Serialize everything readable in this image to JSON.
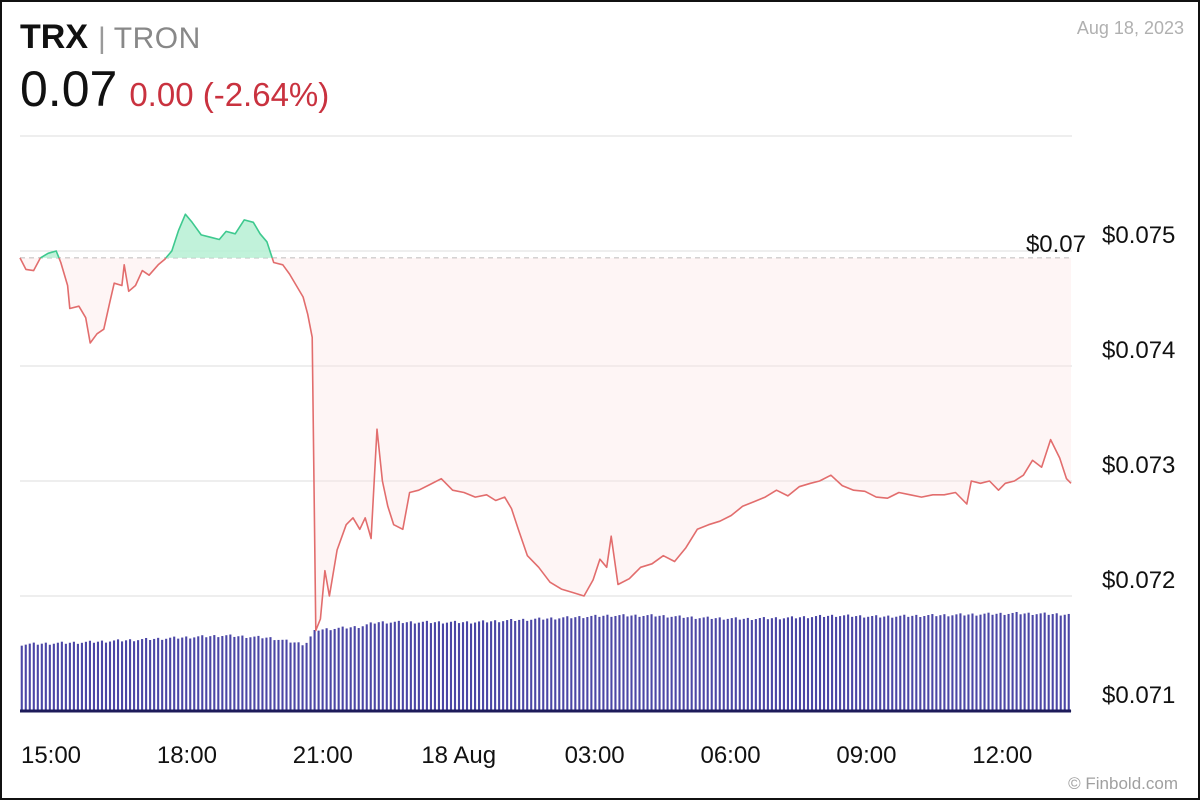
{
  "header": {
    "symbol": "TRX",
    "separator": "|",
    "name": "TRON",
    "price": "0.07",
    "change": "0.00 (-2.64%)",
    "date": "Aug 18, 2023"
  },
  "credit": "© Finbold.com",
  "colors": {
    "up_line": "#3ec98f",
    "up_fill": "#b6f0d3",
    "down_line": "#e26d6d",
    "down_fill": "#fde2e2",
    "volume_bar": "#4b46a6",
    "grid": "#dddddd",
    "reference": "#cccccc"
  },
  "chart_data": {
    "type": "line",
    "title": "",
    "xlabel": "",
    "ylabel": "",
    "ylim": [
      0.071,
      0.076
    ],
    "y_ticks": [
      {
        "value": 0.075,
        "label": "$0.075"
      },
      {
        "value": 0.074,
        "label": "$0.074"
      },
      {
        "value": 0.073,
        "label": "$0.073"
      },
      {
        "value": 0.072,
        "label": "$0.072"
      },
      {
        "value": 0.071,
        "label": "$0.071"
      }
    ],
    "reference_line": {
      "value": 0.07494,
      "label": "$0.07"
    },
    "x_unit": "hours since 15:00 Aug 17, 2023",
    "xlim": [
      0,
      23.2
    ],
    "x_ticks": [
      {
        "value": 0,
        "label": "15:00"
      },
      {
        "value": 3,
        "label": "18:00"
      },
      {
        "value": 6,
        "label": "21:00"
      },
      {
        "value": 9,
        "label": "18 Aug"
      },
      {
        "value": 12,
        "label": "03:00"
      },
      {
        "value": 15,
        "label": "06:00"
      },
      {
        "value": 18,
        "label": "09:00"
      },
      {
        "value": 21,
        "label": "12:00"
      }
    ],
    "grid": "horizontal",
    "series": [
      {
        "values": [
          [
            0.0,
            0.07494
          ],
          [
            0.13,
            0.07484
          ],
          [
            0.3,
            0.07483
          ],
          [
            0.45,
            0.07494
          ],
          [
            0.62,
            0.07498
          ],
          [
            0.8,
            0.075
          ],
          [
            0.9,
            0.0749
          ],
          [
            1.05,
            0.0747
          ],
          [
            1.1,
            0.0745
          ],
          [
            1.3,
            0.07452
          ],
          [
            1.45,
            0.07442
          ],
          [
            1.55,
            0.0742
          ],
          [
            1.7,
            0.07428
          ],
          [
            1.85,
            0.07432
          ],
          [
            1.98,
            0.07455
          ],
          [
            2.08,
            0.07472
          ],
          [
            2.25,
            0.0747
          ],
          [
            2.3,
            0.07488
          ],
          [
            2.4,
            0.07465
          ],
          [
            2.55,
            0.0747
          ],
          [
            2.7,
            0.07483
          ],
          [
            2.85,
            0.07479
          ],
          [
            3.05,
            0.07488
          ],
          [
            3.2,
            0.07493
          ],
          [
            3.35,
            0.075
          ],
          [
            3.5,
            0.07518
          ],
          [
            3.65,
            0.07532
          ],
          [
            3.8,
            0.07525
          ],
          [
            4.0,
            0.07514
          ],
          [
            4.2,
            0.07512
          ],
          [
            4.4,
            0.0751
          ],
          [
            4.55,
            0.07517
          ],
          [
            4.75,
            0.07515
          ],
          [
            4.95,
            0.07527
          ],
          [
            5.15,
            0.07525
          ],
          [
            5.3,
            0.07515
          ],
          [
            5.45,
            0.07508
          ],
          [
            5.6,
            0.0749
          ],
          [
            5.8,
            0.07488
          ],
          [
            5.95,
            0.0748
          ],
          [
            6.1,
            0.0747
          ],
          [
            6.25,
            0.0746
          ],
          [
            6.35,
            0.07445
          ],
          [
            6.45,
            0.07425
          ],
          [
            6.53,
            0.0717
          ],
          [
            6.63,
            0.0718
          ],
          [
            6.73,
            0.07222
          ],
          [
            6.83,
            0.072
          ],
          [
            7.0,
            0.0724
          ],
          [
            7.2,
            0.07262
          ],
          [
            7.35,
            0.07268
          ],
          [
            7.5,
            0.07258
          ],
          [
            7.62,
            0.07268
          ],
          [
            7.75,
            0.0725
          ],
          [
            7.88,
            0.07345
          ],
          [
            8.0,
            0.073
          ],
          [
            8.12,
            0.07278
          ],
          [
            8.25,
            0.07262
          ],
          [
            8.45,
            0.07258
          ],
          [
            8.6,
            0.0729
          ],
          [
            8.8,
            0.07292
          ],
          [
            9.05,
            0.07297
          ],
          [
            9.3,
            0.07302
          ],
          [
            9.55,
            0.07292
          ],
          [
            9.8,
            0.0729
          ],
          [
            10.05,
            0.07286
          ],
          [
            10.3,
            0.07288
          ],
          [
            10.5,
            0.07283
          ],
          [
            10.7,
            0.07286
          ],
          [
            10.85,
            0.07276
          ],
          [
            11.0,
            0.07258
          ],
          [
            11.2,
            0.07235
          ],
          [
            11.45,
            0.07225
          ],
          [
            11.7,
            0.07212
          ],
          [
            11.95,
            0.07206
          ],
          [
            12.2,
            0.07203
          ],
          [
            12.45,
            0.072
          ],
          [
            12.65,
            0.07214
          ],
          [
            12.8,
            0.07232
          ],
          [
            12.95,
            0.07225
          ],
          [
            13.05,
            0.07252
          ],
          [
            13.2,
            0.0721
          ],
          [
            13.45,
            0.07215
          ],
          [
            13.7,
            0.07225
          ],
          [
            13.95,
            0.07228
          ],
          [
            14.2,
            0.07235
          ],
          [
            14.45,
            0.0723
          ],
          [
            14.7,
            0.07242
          ],
          [
            14.95,
            0.07258
          ],
          [
            15.2,
            0.07262
          ],
          [
            15.45,
            0.07265
          ],
          [
            15.7,
            0.0727
          ],
          [
            15.95,
            0.07278
          ],
          [
            16.2,
            0.07282
          ],
          [
            16.45,
            0.07286
          ],
          [
            16.7,
            0.07292
          ],
          [
            16.95,
            0.07287
          ],
          [
            17.2,
            0.07295
          ],
          [
            17.45,
            0.07298
          ],
          [
            17.65,
            0.073
          ],
          [
            17.9,
            0.07305
          ],
          [
            18.15,
            0.07296
          ],
          [
            18.4,
            0.07292
          ],
          [
            18.65,
            0.07291
          ],
          [
            18.9,
            0.07286
          ],
          [
            19.15,
            0.07285
          ],
          [
            19.4,
            0.0729
          ],
          [
            19.65,
            0.07288
          ],
          [
            19.9,
            0.07286
          ],
          [
            20.15,
            0.07288
          ],
          [
            20.4,
            0.07288
          ],
          [
            20.65,
            0.0729
          ],
          [
            20.9,
            0.0728
          ],
          [
            21.0,
            0.073
          ],
          [
            21.2,
            0.07298
          ],
          [
            21.4,
            0.073
          ],
          [
            21.6,
            0.07292
          ],
          [
            21.75,
            0.07298
          ],
          [
            21.95,
            0.073
          ],
          [
            22.15,
            0.07305
          ],
          [
            22.35,
            0.07318
          ],
          [
            22.55,
            0.07312
          ],
          [
            22.75,
            0.07336
          ],
          [
            22.95,
            0.0732
          ],
          [
            23.1,
            0.07302
          ],
          [
            23.2,
            0.07298
          ]
        ]
      }
    ],
    "volume": {
      "unit": "relative (0–1)",
      "values": [
        [
          0.0,
          0.6
        ],
        [
          1.5,
          0.62
        ],
        [
          2.5,
          0.64
        ],
        [
          3.0,
          0.65
        ],
        [
          4.5,
          0.68
        ],
        [
          5.5,
          0.66
        ],
        [
          6.3,
          0.6
        ],
        [
          6.53,
          0.73
        ],
        [
          7.5,
          0.76
        ],
        [
          7.88,
          0.8
        ],
        [
          8.5,
          0.8
        ],
        [
          10.0,
          0.8
        ],
        [
          11.0,
          0.82
        ],
        [
          12.0,
          0.84
        ],
        [
          13.0,
          0.86
        ],
        [
          14.0,
          0.86
        ],
        [
          15.0,
          0.84
        ],
        [
          16.0,
          0.83
        ],
        [
          17.0,
          0.84
        ],
        [
          18.0,
          0.86
        ],
        [
          19.0,
          0.85
        ],
        [
          20.0,
          0.86
        ],
        [
          21.0,
          0.87
        ],
        [
          22.0,
          0.88
        ],
        [
          23.2,
          0.87
        ]
      ]
    }
  }
}
